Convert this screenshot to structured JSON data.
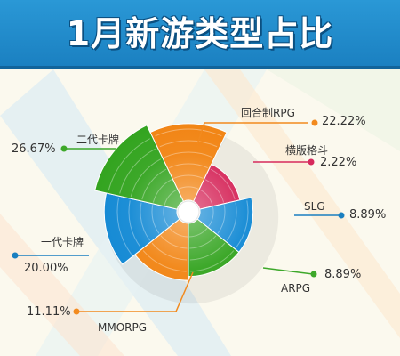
{
  "title": "1月新游类型占比",
  "chart_data": {
    "type": "pie",
    "variant": "polar-area",
    "title": "1月新游类型占比",
    "series": [
      {
        "name": "回合制RPG",
        "value": 22.22,
        "label": "22.22%",
        "color": "#f28a1e",
        "line_color": "#f28a1e"
      },
      {
        "name": "横版格斗",
        "value": 2.22,
        "label": "2.22%",
        "color": "#d62a5c",
        "line_color": "#d62a5c"
      },
      {
        "name": "SLG",
        "value": 8.89,
        "label": "8.89%",
        "color": "#1e8fd6",
        "line_color": "#1a7fc0"
      },
      {
        "name": "ARPG",
        "value": 8.89,
        "label": "8.89%",
        "color": "#3da82a",
        "line_color": "#3da82a"
      },
      {
        "name": "MMORPG",
        "value": 11.11,
        "label": "11.11%",
        "color": "#f28a1e",
        "line_color": "#f28a1e"
      },
      {
        "name": "一代卡牌",
        "value": 20.0,
        "label": "20.00%",
        "color": "#1e8fd6",
        "line_color": "#1a7fc0"
      },
      {
        "name": "二代卡牌",
        "value": 26.67,
        "label": "26.67%",
        "color": "#3da82a",
        "line_color": "#3da82a"
      }
    ],
    "legend": "none"
  }
}
